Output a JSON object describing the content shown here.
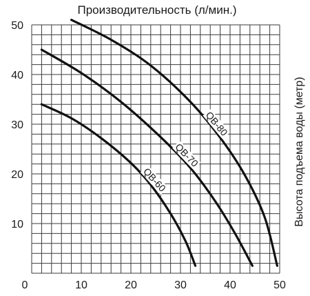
{
  "chart_data": {
    "type": "line",
    "title": "Производительность (л/мин.)",
    "xlabel": "",
    "ylabel": "Высота подъема воды (метр)",
    "xlim": [
      0,
      50
    ],
    "ylim": [
      0,
      50
    ],
    "x_ticks": [
      "0",
      "10",
      "20",
      "30",
      "40",
      "50"
    ],
    "y_ticks": [
      "10",
      "20",
      "30",
      "40",
      "50"
    ],
    "grid": true,
    "grid_minor_step": 2,
    "series": [
      {
        "name": "QB-60",
        "points": [
          [
            2,
            34
          ],
          [
            8,
            31.2
          ],
          [
            14,
            27.2
          ],
          [
            20,
            22.2
          ],
          [
            24,
            17.8
          ],
          [
            28,
            12
          ],
          [
            31,
            6.5
          ],
          [
            33,
            1.5
          ]
        ]
      },
      {
        "name": "QB-70",
        "points": [
          [
            2,
            45
          ],
          [
            10,
            40.3
          ],
          [
            18,
            34.5
          ],
          [
            26,
            27.4
          ],
          [
            32,
            21.2
          ],
          [
            37,
            14.5
          ],
          [
            41,
            8
          ],
          [
            44.5,
            1.5
          ]
        ]
      },
      {
        "name": "QB-80",
        "points": [
          [
            8,
            51
          ],
          [
            16,
            47
          ],
          [
            24,
            41.8
          ],
          [
            32,
            34.5
          ],
          [
            38,
            27.3
          ],
          [
            43,
            19.7
          ],
          [
            47,
            11.2
          ],
          [
            49.5,
            1.5
          ]
        ]
      }
    ],
    "curve_labels": [
      {
        "series": "QB-80",
        "text": "QB-80",
        "at_x": 36.5
      },
      {
        "series": "QB-70",
        "text": "QB-70",
        "at_x": 30.5
      },
      {
        "series": "QB-60",
        "text": "QB-60",
        "at_x": 24
      }
    ],
    "colors": {
      "curve": "#111111",
      "grid": "#3a3a3a",
      "text": "#1a1a1a"
    }
  }
}
